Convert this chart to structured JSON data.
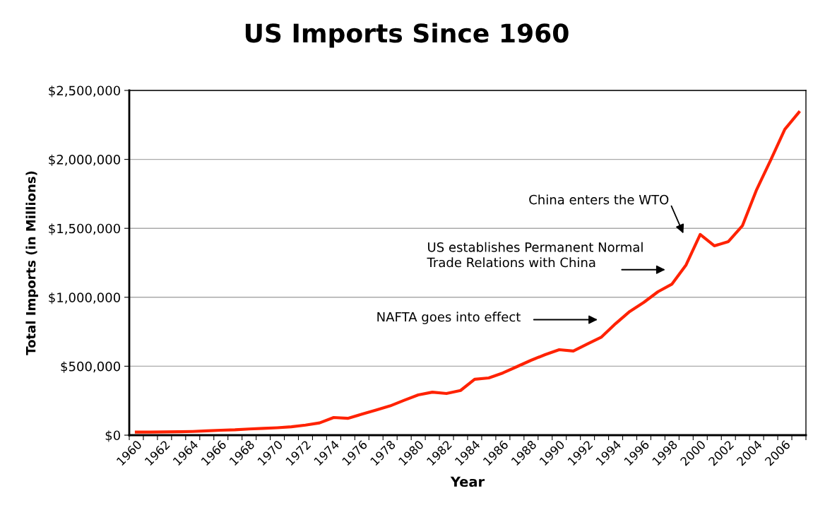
{
  "chart_data": {
    "type": "line",
    "title": "US Imports Since 1960",
    "xlabel": "Year",
    "ylabel": "Total Imports (in Millions)",
    "categories": [
      "1960",
      null,
      "1962",
      null,
      "1964",
      null,
      "1966",
      null,
      "1968",
      null,
      "1970",
      null,
      "1972",
      null,
      "1974",
      null,
      "1976",
      null,
      "1978",
      null,
      "1980",
      null,
      "1982",
      null,
      "1984",
      null,
      "1986",
      null,
      "1988",
      null,
      "1990",
      null,
      "1992",
      null,
      "1994",
      null,
      "1996",
      null,
      "1998",
      null,
      "2000",
      null,
      "2002",
      null,
      "2004",
      null,
      "2006",
      null
    ],
    "series": [
      {
        "color": "#ff2200",
        "values": [
          22000,
          22000,
          24000,
          25000,
          27000,
          31000,
          36000,
          39000,
          45000,
          49000,
          54000,
          61000,
          73000,
          89000,
          128000,
          122000,
          152000,
          182000,
          212000,
          253000,
          292000,
          312000,
          302000,
          324000,
          405000,
          415000,
          451000,
          497000,
          543000,
          584000,
          620000,
          610000,
          661000,
          712000,
          809000,
          897000,
          963000,
          1040000,
          1096000,
          1235000,
          1455000,
          1373000,
          1404000,
          1520000,
          1780000,
          1995000,
          2218000,
          2341000
        ]
      }
    ],
    "ylim": [
      0,
      2500000
    ],
    "yticks": [
      {
        "value": 0,
        "label": "$0"
      },
      {
        "value": 500000,
        "label": "$500,000"
      },
      {
        "value": 1000000,
        "label": "$1,000,000"
      },
      {
        "value": 1500000,
        "label": "$1,500,000"
      },
      {
        "value": 2000000,
        "label": "$2,000,000"
      },
      {
        "value": 2500000,
        "label": "$2,500,000"
      }
    ],
    "grid": "y",
    "marker": "none",
    "line_style": "solid",
    "annotations": [
      "China enters the WTO",
      "US establishes Permanent Normal\nTrade Relations with China",
      "NAFTA goes into effect"
    ]
  }
}
